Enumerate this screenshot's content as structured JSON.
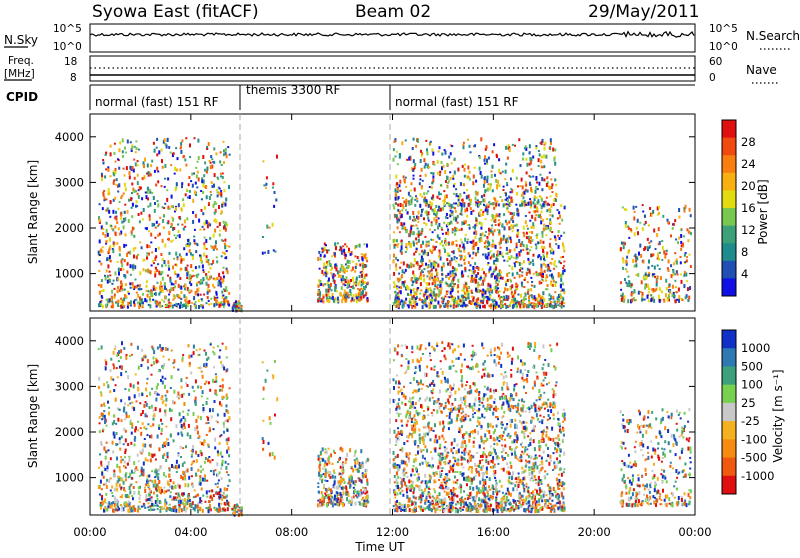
{
  "header": {
    "title": "Syowa East (fitACF)",
    "beam": "Beam 02",
    "date": "29/May/2011"
  },
  "panels": {
    "nsky_label": "N.Sky",
    "nsearch_label": "N.Search",
    "noise_ticks_left": [
      "10^5",
      "10^0"
    ],
    "noise_ticks_right": [
      "10^5",
      "10^0"
    ],
    "freq_label_top": "Freq.",
    "freq_label_unit": "[MHz]",
    "freq_ticks": [
      "18",
      "8"
    ],
    "nave_label": "Nave",
    "nave_ticks": [
      "60",
      "0"
    ],
    "cpid_label": "CPID",
    "cpid_segments": [
      "normal (fast) 151 RF",
      "themis 3300 RF",
      "normal (fast) 151 RF"
    ]
  },
  "chart_data": [
    {
      "type": "heatmap",
      "title": "",
      "ylabel": "Slant Range [km]",
      "xlabel": "",
      "x_range_hours": [
        0,
        24
      ],
      "ylim": [
        180,
        4500
      ],
      "y_ticks": [
        "1000",
        "2000",
        "3000",
        "4000"
      ],
      "colorbar": {
        "label": "Power [dB]",
        "ticks": [
          "28",
          "24",
          "20",
          "16",
          "12",
          "8",
          "4"
        ],
        "colors": [
          "#e01010",
          "#f04a10",
          "#f87e10",
          "#f7b010",
          "#e0dc10",
          "#78c850",
          "#3ca078",
          "#1e8c8c",
          "#2050b4",
          "#1010e6"
        ]
      }
    },
    {
      "type": "heatmap",
      "title": "",
      "ylabel": "Slant Range [km]",
      "xlabel": "Time UT",
      "x_range_hours": [
        0,
        24
      ],
      "ylim": [
        180,
        4500
      ],
      "y_ticks": [
        "1000",
        "2000",
        "3000",
        "4000"
      ],
      "x_ticks": [
        "00:00",
        "04:00",
        "08:00",
        "12:00",
        "16:00",
        "20:00",
        "00:00"
      ],
      "colorbar": {
        "label": "Velocity [m s⁻¹]",
        "ticks": [
          "1000",
          "500",
          "100",
          "25",
          "-25",
          "-100",
          "-500",
          "-1000"
        ],
        "colors": [
          "#1030c8",
          "#2e78b4",
          "#3ca07a",
          "#78d050",
          "#c8c8c8",
          "#f5b020",
          "#f78a10",
          "#f05a10",
          "#e01010"
        ]
      }
    }
  ]
}
